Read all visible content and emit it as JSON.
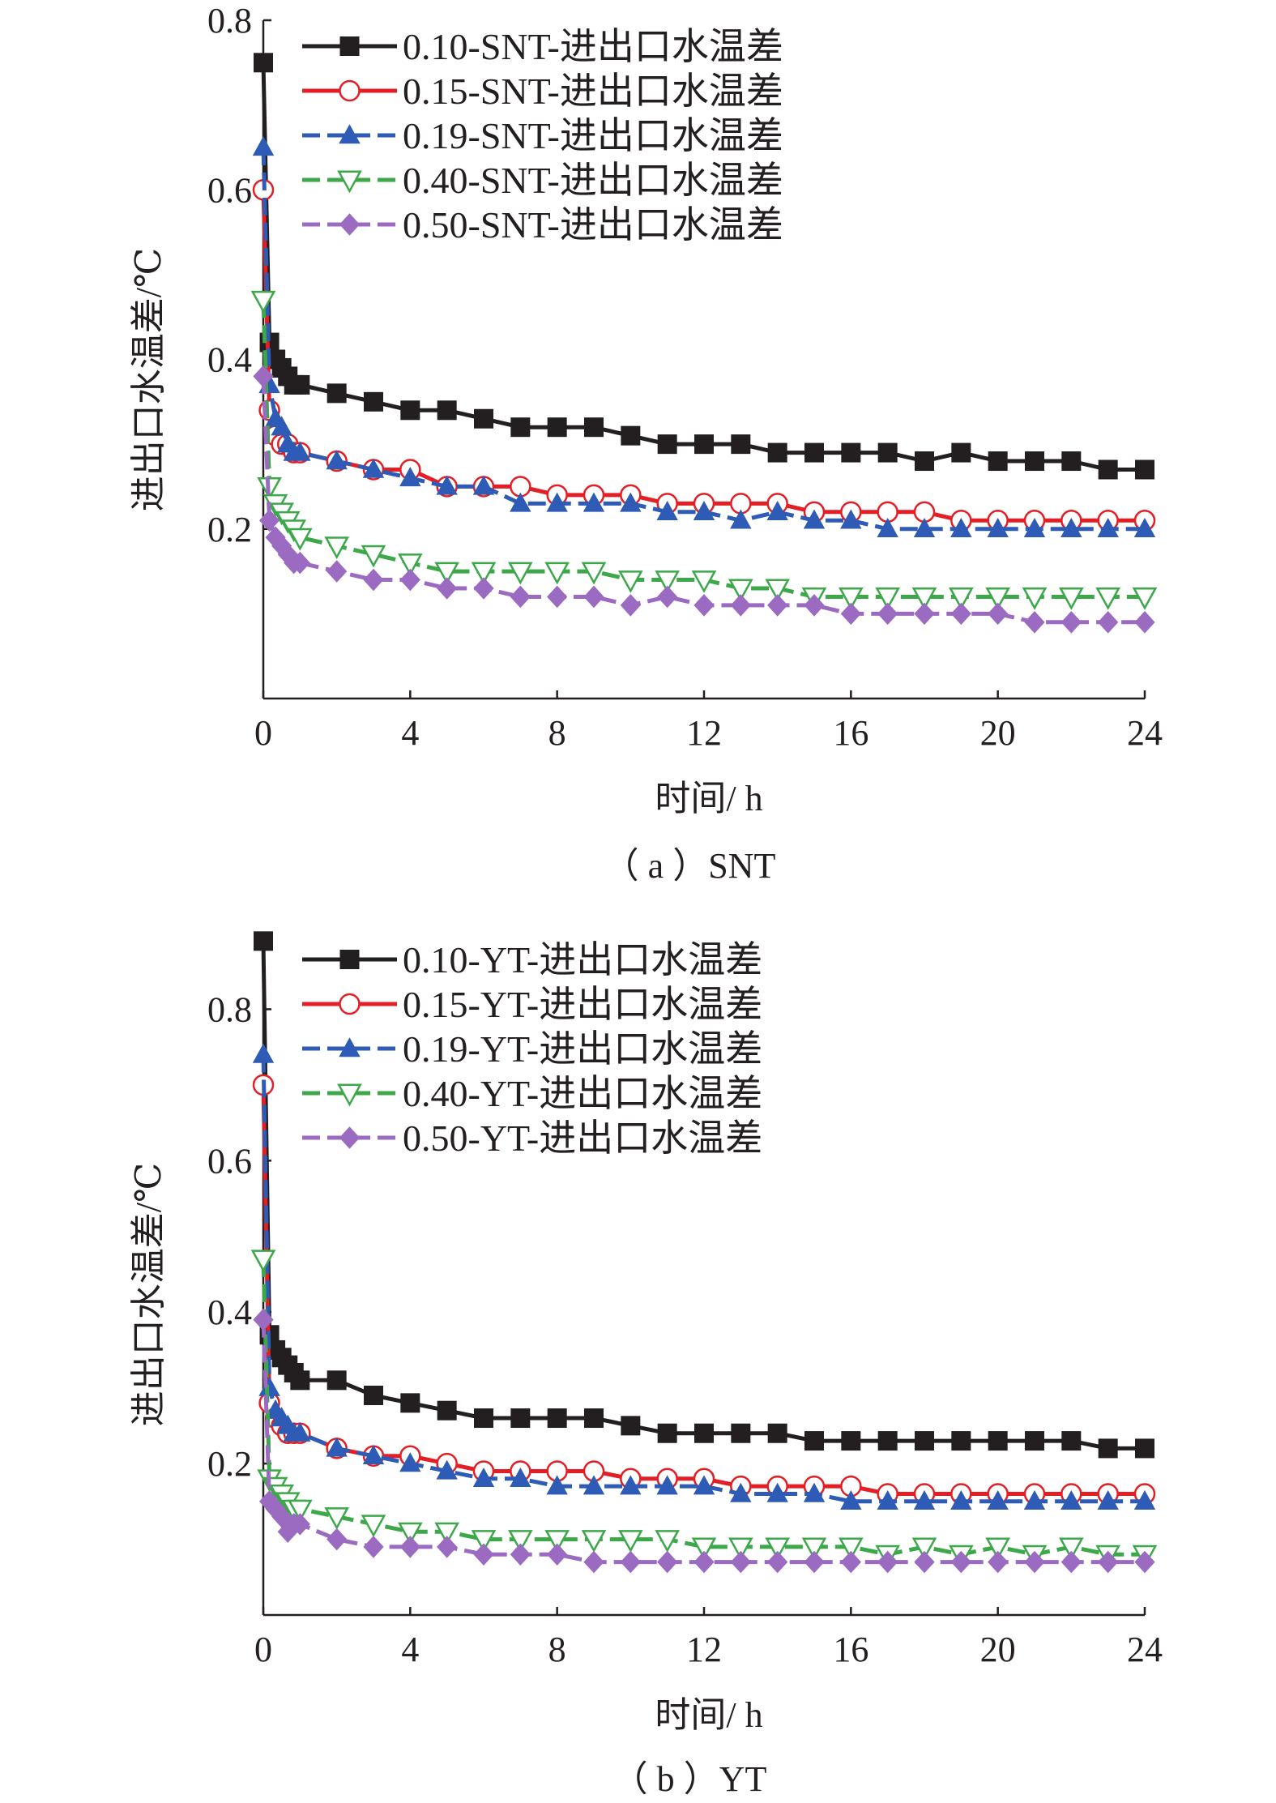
{
  "chart_data": [
    {
      "type": "line",
      "caption": "（ a ）SNT",
      "xlabel": "时间/ h",
      "ylabel": "进出口水温差/℃",
      "xlim": [
        0,
        24
      ],
      "ylim": [
        0,
        0.8
      ],
      "xticks": [
        0,
        4,
        8,
        12,
        16,
        20,
        24
      ],
      "yticks": [
        0.2,
        0.4,
        0.6,
        0.8
      ],
      "ytick_labels": [
        "0.2",
        "0.4",
        "0.6",
        "0.8"
      ],
      "grid": false,
      "legend_position": "top-right",
      "series": [
        {
          "name": "0.10-SNT-进出口水温差",
          "color": "#231f20",
          "marker": "square",
          "dash": "solid",
          "x": [
            0,
            0.167,
            0.333,
            0.5,
            0.667,
            0.833,
            1,
            2,
            3,
            4,
            5,
            6,
            7,
            8,
            9,
            10,
            11,
            12,
            13,
            14,
            15,
            16,
            17,
            18,
            19,
            20,
            21,
            22,
            23,
            24
          ],
          "y": [
            0.75,
            0.42,
            0.4,
            0.39,
            0.38,
            0.37,
            0.37,
            0.36,
            0.35,
            0.34,
            0.34,
            0.33,
            0.32,
            0.32,
            0.32,
            0.31,
            0.3,
            0.3,
            0.3,
            0.29,
            0.29,
            0.29,
            0.29,
            0.28,
            0.29,
            0.28,
            0.28,
            0.28,
            0.27,
            0.27
          ]
        },
        {
          "name": "0.15-SNT-进出口水温差",
          "color": "#e31e24",
          "marker": "circle-open",
          "dash": "solid",
          "x": [
            0,
            0.167,
            0.333,
            0.5,
            0.667,
            0.833,
            1,
            2,
            3,
            4,
            5,
            6,
            7,
            8,
            9,
            10,
            11,
            12,
            13,
            14,
            15,
            16,
            17,
            18,
            19,
            20,
            21,
            22,
            23,
            24
          ],
          "y": [
            0.6,
            0.34,
            0.31,
            0.3,
            0.3,
            0.29,
            0.29,
            0.28,
            0.27,
            0.27,
            0.25,
            0.25,
            0.25,
            0.24,
            0.24,
            0.24,
            0.23,
            0.23,
            0.23,
            0.23,
            0.22,
            0.22,
            0.22,
            0.22,
            0.21,
            0.21,
            0.21,
            0.21,
            0.21,
            0.21
          ]
        },
        {
          "name": "0.19-SNT-进出口水温差",
          "color": "#2e5bb5",
          "marker": "triangle",
          "dash": "dash",
          "x": [
            0,
            0.167,
            0.333,
            0.5,
            0.667,
            0.833,
            1,
            2,
            3,
            4,
            5,
            6,
            7,
            8,
            9,
            10,
            11,
            12,
            13,
            14,
            15,
            16,
            17,
            18,
            19,
            20,
            21,
            22,
            23,
            24
          ],
          "y": [
            0.65,
            0.37,
            0.33,
            0.32,
            0.3,
            0.29,
            0.29,
            0.28,
            0.27,
            0.26,
            0.25,
            0.25,
            0.23,
            0.23,
            0.23,
            0.23,
            0.22,
            0.22,
            0.21,
            0.22,
            0.21,
            0.21,
            0.2,
            0.2,
            0.2,
            0.2,
            0.2,
            0.2,
            0.2,
            0.2
          ]
        },
        {
          "name": "0.40-SNT-进出口水温差",
          "color": "#3ca84a",
          "marker": "triangle-down-open",
          "dash": "dash",
          "x": [
            0,
            0.167,
            0.333,
            0.5,
            0.667,
            0.833,
            1,
            2,
            3,
            4,
            5,
            6,
            7,
            8,
            9,
            10,
            11,
            12,
            13,
            14,
            15,
            16,
            17,
            18,
            19,
            20,
            21,
            22,
            23,
            24
          ],
          "y": [
            0.47,
            0.25,
            0.23,
            0.22,
            0.21,
            0.2,
            0.19,
            0.18,
            0.17,
            0.16,
            0.15,
            0.15,
            0.15,
            0.15,
            0.15,
            0.14,
            0.14,
            0.14,
            0.13,
            0.13,
            0.12,
            0.12,
            0.12,
            0.12,
            0.12,
            0.12,
            0.12,
            0.12,
            0.12,
            0.12
          ]
        },
        {
          "name": "0.50-SNT-进出口水温差",
          "color": "#9b6bc1",
          "marker": "diamond",
          "dash": "dash",
          "x": [
            0,
            0.167,
            0.333,
            0.5,
            0.667,
            0.833,
            1,
            2,
            3,
            4,
            5,
            6,
            7,
            8,
            9,
            10,
            11,
            12,
            13,
            14,
            15,
            16,
            17,
            18,
            19,
            20,
            21,
            22,
            23,
            24
          ],
          "y": [
            0.38,
            0.21,
            0.19,
            0.18,
            0.17,
            0.16,
            0.16,
            0.15,
            0.14,
            0.14,
            0.13,
            0.13,
            0.12,
            0.12,
            0.12,
            0.11,
            0.12,
            0.11,
            0.11,
            0.11,
            0.11,
            0.1,
            0.1,
            0.1,
            0.1,
            0.1,
            0.09,
            0.09,
            0.09,
            0.09
          ]
        }
      ]
    },
    {
      "type": "line",
      "caption": "（ b ）YT",
      "xlabel": "时间/ h",
      "ylabel": "进出口水温差/℃",
      "xlim": [
        0,
        24
      ],
      "ylim": [
        0,
        0.9
      ],
      "xticks": [
        0,
        4,
        8,
        12,
        16,
        20,
        24
      ],
      "yticks": [
        0.2,
        0.4,
        0.6,
        0.8
      ],
      "ytick_labels": [
        "0.2",
        "0.4",
        "0.6",
        "0.8"
      ],
      "grid": false,
      "legend_position": "top-right",
      "series": [
        {
          "name": "0.10-YT-进出口水温差",
          "color": "#231f20",
          "marker": "square",
          "dash": "solid",
          "x": [
            0,
            0.167,
            0.333,
            0.5,
            0.667,
            0.833,
            1,
            2,
            3,
            4,
            5,
            6,
            7,
            8,
            9,
            10,
            11,
            12,
            13,
            14,
            15,
            16,
            17,
            18,
            19,
            20,
            21,
            22,
            23,
            24
          ],
          "y": [
            0.89,
            0.37,
            0.35,
            0.34,
            0.33,
            0.32,
            0.31,
            0.31,
            0.29,
            0.28,
            0.27,
            0.26,
            0.26,
            0.26,
            0.26,
            0.25,
            0.24,
            0.24,
            0.24,
            0.24,
            0.23,
            0.23,
            0.23,
            0.23,
            0.23,
            0.23,
            0.23,
            0.23,
            0.22,
            0.22
          ]
        },
        {
          "name": "0.15-YT-进出口水温差",
          "color": "#e31e24",
          "marker": "circle-open",
          "dash": "solid",
          "x": [
            0,
            0.167,
            0.333,
            0.5,
            0.667,
            0.833,
            1,
            2,
            3,
            4,
            5,
            6,
            7,
            8,
            9,
            10,
            11,
            12,
            13,
            14,
            15,
            16,
            17,
            18,
            19,
            20,
            21,
            22,
            23,
            24
          ],
          "y": [
            0.7,
            0.28,
            0.26,
            0.25,
            0.24,
            0.24,
            0.24,
            0.22,
            0.21,
            0.21,
            0.2,
            0.19,
            0.19,
            0.19,
            0.19,
            0.18,
            0.18,
            0.18,
            0.17,
            0.17,
            0.17,
            0.17,
            0.16,
            0.16,
            0.16,
            0.16,
            0.16,
            0.16,
            0.16,
            0.16
          ]
        },
        {
          "name": "0.19-YT-进出口水温差",
          "color": "#2e5bb5",
          "marker": "triangle",
          "dash": "dash",
          "x": [
            0,
            0.167,
            0.333,
            0.5,
            0.667,
            0.833,
            1,
            2,
            3,
            4,
            5,
            6,
            7,
            8,
            9,
            10,
            11,
            12,
            13,
            14,
            15,
            16,
            17,
            18,
            19,
            20,
            21,
            22,
            23,
            24
          ],
          "y": [
            0.74,
            0.3,
            0.27,
            0.26,
            0.25,
            0.24,
            0.24,
            0.22,
            0.21,
            0.2,
            0.19,
            0.18,
            0.18,
            0.17,
            0.17,
            0.17,
            0.17,
            0.17,
            0.16,
            0.16,
            0.16,
            0.15,
            0.15,
            0.15,
            0.15,
            0.15,
            0.15,
            0.15,
            0.15,
            0.15
          ]
        },
        {
          "name": "0.40-YT-进出口水温差",
          "color": "#3ca84a",
          "marker": "triangle-down-open",
          "dash": "dash",
          "x": [
            0,
            0.167,
            0.333,
            0.5,
            0.667,
            0.833,
            1,
            2,
            3,
            4,
            5,
            6,
            7,
            8,
            9,
            10,
            11,
            12,
            13,
            14,
            15,
            16,
            17,
            18,
            19,
            20,
            21,
            22,
            23,
            24
          ],
          "y": [
            0.47,
            0.18,
            0.17,
            0.16,
            0.15,
            0.14,
            0.14,
            0.13,
            0.12,
            0.11,
            0.11,
            0.1,
            0.1,
            0.1,
            0.1,
            0.1,
            0.1,
            0.09,
            0.09,
            0.09,
            0.09,
            0.09,
            0.08,
            0.09,
            0.08,
            0.09,
            0.08,
            0.09,
            0.08,
            0.08
          ]
        },
        {
          "name": "0.50-YT-进出口水温差",
          "color": "#9b6bc1",
          "marker": "diamond",
          "dash": "dash",
          "x": [
            0,
            0.167,
            0.333,
            0.5,
            0.667,
            0.833,
            1,
            2,
            3,
            4,
            5,
            6,
            7,
            8,
            9,
            10,
            11,
            12,
            13,
            14,
            15,
            16,
            17,
            18,
            19,
            20,
            21,
            22,
            23,
            24
          ],
          "y": [
            0.39,
            0.15,
            0.14,
            0.13,
            0.11,
            0.12,
            0.12,
            0.1,
            0.09,
            0.09,
            0.09,
            0.08,
            0.08,
            0.08,
            0.07,
            0.07,
            0.07,
            0.07,
            0.07,
            0.07,
            0.07,
            0.07,
            0.07,
            0.07,
            0.07,
            0.07,
            0.07,
            0.07,
            0.07,
            0.07
          ]
        }
      ]
    }
  ]
}
